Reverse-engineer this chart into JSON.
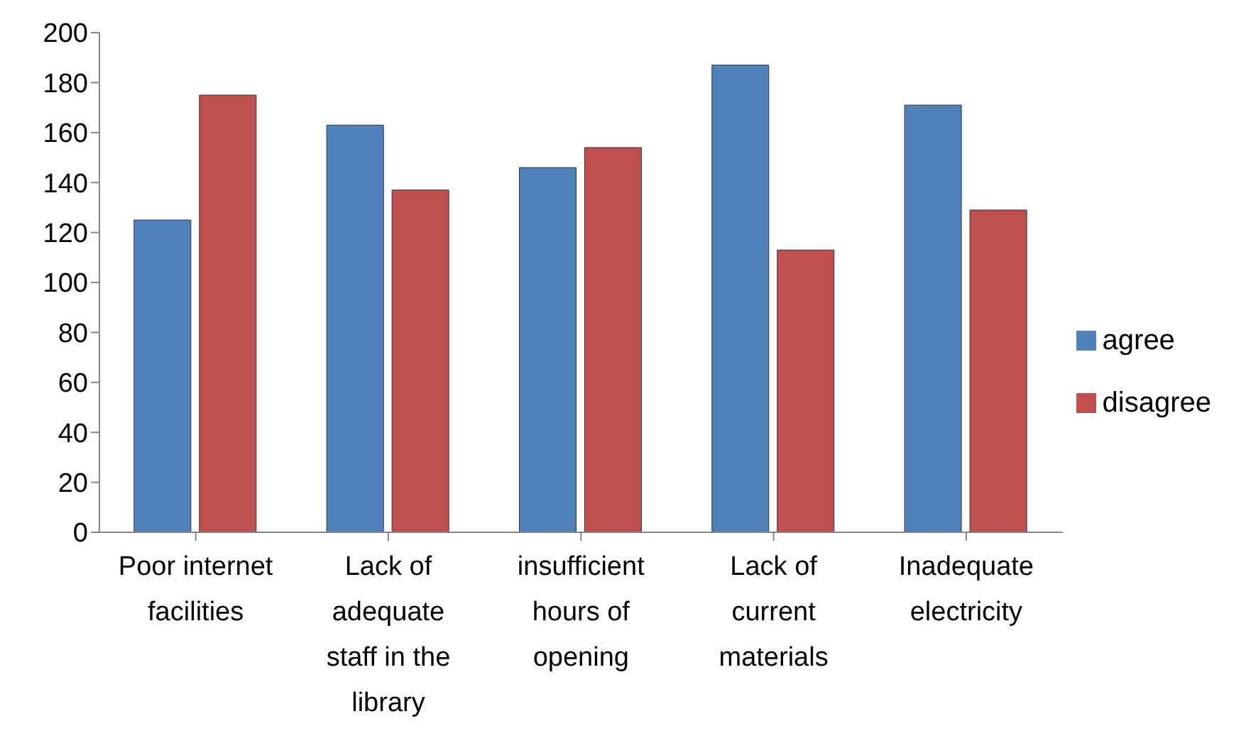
{
  "chart_data": {
    "type": "bar",
    "categories": [
      "Poor internet facilities",
      "Lack of adequate staff in the library",
      "insufficient hours of opening",
      "Lack of current materials",
      "Inadequate electricity"
    ],
    "series": [
      {
        "name": "agree",
        "color": "#4f81bd",
        "values": [
          125,
          163,
          146,
          187,
          171
        ]
      },
      {
        "name": "disagree",
        "color": "#c0504d",
        "values": [
          175,
          137,
          154,
          113,
          129
        ]
      }
    ],
    "ylim": [
      0,
      200
    ],
    "yticks": [
      0,
      20,
      40,
      60,
      80,
      100,
      120,
      140,
      160,
      180,
      200
    ],
    "grid": false,
    "legend": "right"
  }
}
